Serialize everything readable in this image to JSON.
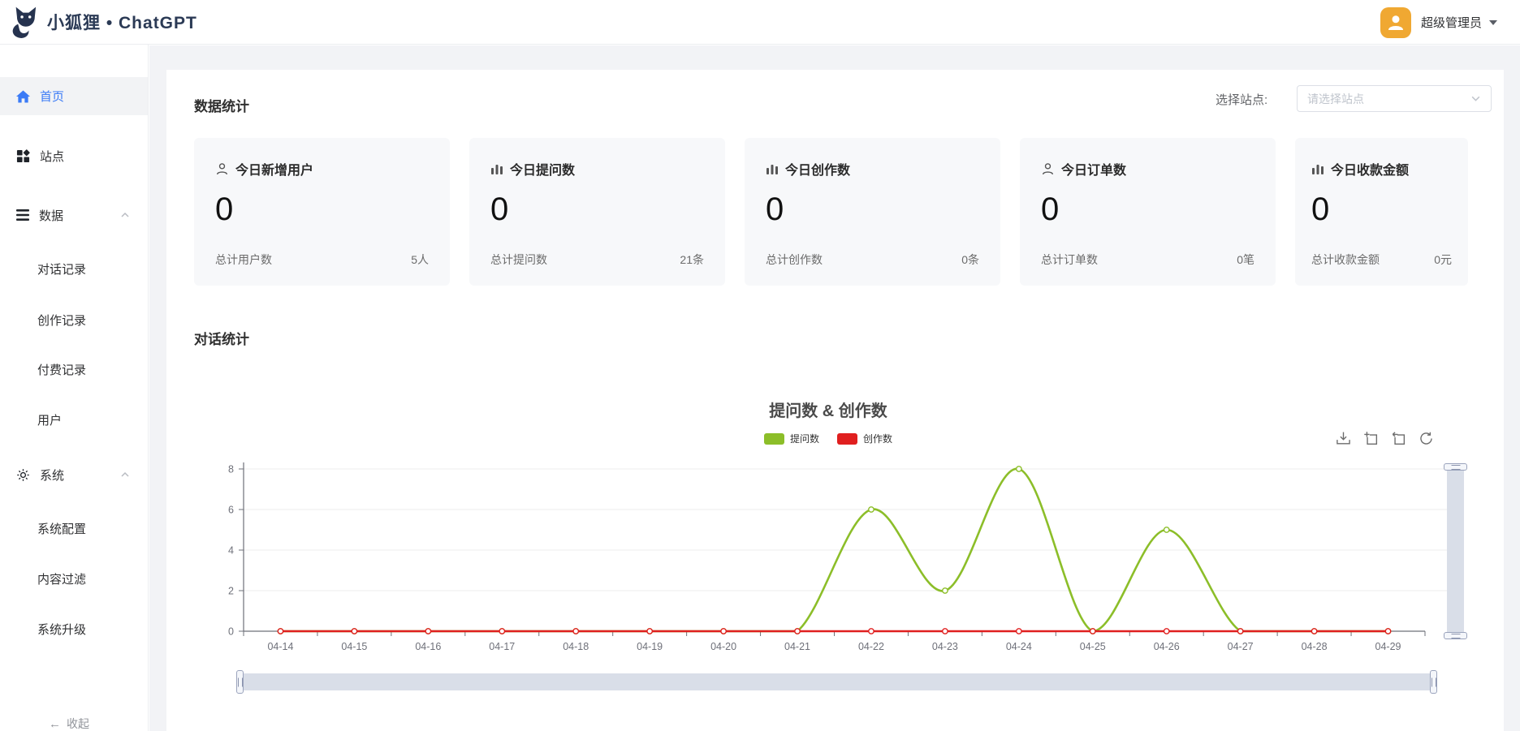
{
  "header": {
    "brand": "小狐狸 • ChatGPT",
    "user_name": "超级管理员"
  },
  "sidebar": {
    "items": [
      {
        "label": "首页",
        "icon": "home",
        "active": true
      },
      {
        "label": "站点",
        "icon": "grid"
      },
      {
        "label": "数据",
        "icon": "list",
        "expanded": true,
        "children": [
          "对话记录",
          "创作记录",
          "付费记录",
          "用户"
        ]
      },
      {
        "label": "系统",
        "icon": "gear",
        "expanded": true,
        "children": [
          "系统配置",
          "内容过滤",
          "系统升级"
        ]
      }
    ],
    "collapse_label": "收起",
    "active_color": "#3b7bf6"
  },
  "data_section": {
    "title": "数据统计",
    "site_select_label": "选择站点:",
    "site_select_placeholder": "请选择站点",
    "cards": [
      {
        "icon": "user-icon",
        "title": "今日新增用户",
        "value": "0",
        "total_label": "总计用户数",
        "total_value": "5人"
      },
      {
        "icon": "bar-chart-icon",
        "title": "今日提问数",
        "value": "0",
        "total_label": "总计提问数",
        "total_value": "21条"
      },
      {
        "icon": "bar-chart-icon",
        "title": "今日创作数",
        "value": "0",
        "total_label": "总计创作数",
        "total_value": "0条"
      },
      {
        "icon": "user-icon",
        "title": "今日订单数",
        "value": "0",
        "total_label": "总计订单数",
        "total_value": "0笔"
      },
      {
        "icon": "bar-chart-icon",
        "title": "今日收款金额",
        "value": "0",
        "total_label": "总计收款金额",
        "total_value": "0元"
      }
    ]
  },
  "chat_section": {
    "title": "对话统计"
  },
  "chart_data": {
    "type": "line",
    "title": "提问数 & 创作数",
    "categories": [
      "04-14",
      "04-15",
      "04-16",
      "04-17",
      "04-18",
      "04-19",
      "04-20",
      "04-21",
      "04-22",
      "04-23",
      "04-24",
      "04-25",
      "04-26",
      "04-27",
      "04-28",
      "04-29"
    ],
    "series": [
      {
        "name": "提问数",
        "color": "#8cbe29",
        "values": [
          0,
          0,
          0,
          0,
          0,
          0,
          0,
          0,
          6,
          2,
          8,
          0,
          5,
          0,
          0,
          0
        ]
      },
      {
        "name": "创作数",
        "color": "#e01f1f",
        "values": [
          0,
          0,
          0,
          0,
          0,
          0,
          0,
          0,
          0,
          0,
          0,
          0,
          0,
          0,
          0,
          0
        ]
      }
    ],
    "smooth": true,
    "ylim": [
      0,
      8
    ],
    "yticks": [
      0,
      2,
      4,
      6,
      8
    ],
    "grid": true,
    "legend_position": "top",
    "toolbox": [
      "save-as-image",
      "data-zoom",
      "data-zoom-reset",
      "restore"
    ]
  }
}
